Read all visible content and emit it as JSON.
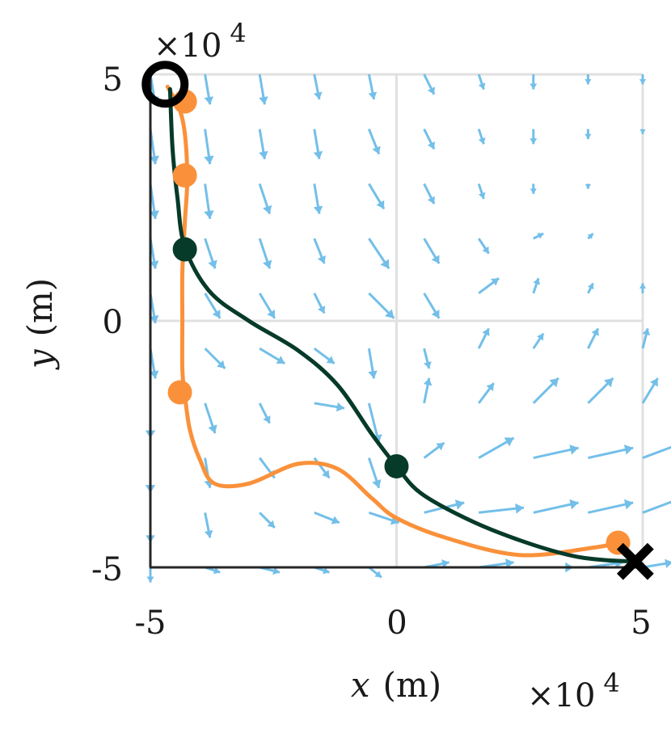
{
  "chart_data": {
    "type": "line",
    "title": "",
    "xlabel": "x (m)",
    "ylabel": "y (m)",
    "xlabel_var": "x",
    "xlabel_unit": "(m)",
    "ylabel_var": "y",
    "ylabel_unit": "(m)",
    "x_multiplier": "×10",
    "x_multiplier_exp": "4",
    "y_multiplier": "×10",
    "y_multiplier_exp": "4",
    "xlim": [
      -5,
      5
    ],
    "ylim": [
      -5,
      5
    ],
    "xticks": [
      "-5",
      "0",
      "5"
    ],
    "yticks": [
      "5",
      "0",
      "-5"
    ],
    "grid": true,
    "legend": "none",
    "series": [
      {
        "color": "#fa913a",
        "x": [
          -4.65,
          -4.35,
          -4.25,
          -4.3,
          -4.35,
          -4.35,
          -4.35,
          -4.3,
          -4.2,
          -4.0,
          -3.7,
          -3.0,
          -2.0,
          -1.2,
          -0.5,
          0.0,
          1.0,
          2.5,
          4.0,
          4.5
        ],
        "y": [
          4.75,
          4.1,
          3.0,
          2.0,
          1.0,
          0.0,
          -1.0,
          -1.5,
          -2.2,
          -2.8,
          -3.3,
          -3.3,
          -2.9,
          -3.0,
          -3.6,
          -4.0,
          -4.4,
          -4.75,
          -4.6,
          -4.5
        ],
        "markers_x": [
          -4.3,
          -4.3,
          -4.4,
          4.5
        ],
        "markers_y": [
          4.45,
          2.95,
          -1.45,
          -4.5
        ]
      },
      {
        "color": "#063a29",
        "x": [
          -4.6,
          -4.55,
          -4.45,
          -4.3,
          -3.8,
          -3.0,
          -2.0,
          -1.2,
          -0.5,
          0.0,
          0.5,
          1.5,
          2.5,
          3.5,
          4.2,
          4.85
        ],
        "y": [
          4.7,
          3.5,
          2.5,
          1.5,
          0.6,
          0.0,
          -0.6,
          -1.3,
          -2.3,
          -2.95,
          -3.5,
          -4.05,
          -4.45,
          -4.75,
          -4.85,
          -4.88
        ],
        "markers_x": [
          -4.3,
          0.0
        ],
        "markers_y": [
          1.45,
          -2.95
        ]
      }
    ],
    "start_point": [
      -4.7,
      4.8
    ],
    "end_point": [
      4.85,
      -4.88
    ],
    "vector_field": {
      "color": "#73bfe9",
      "grid_x": [
        -5.0,
        -3.89,
        -2.78,
        -1.67,
        -0.56,
        0.56,
        1.67,
        2.78,
        3.89,
        5.0
      ],
      "grid_y": [
        -5.0,
        -3.89,
        -2.78,
        -1.67,
        -0.56,
        0.56,
        1.67,
        2.78,
        3.89,
        5.0
      ],
      "u": [
        [
          0.0,
          0.3,
          0.4,
          0.3,
          0.25,
          0.5,
          0.7,
          0.8,
          0.7,
          0.6
        ],
        [
          0.0,
          0.1,
          0.3,
          0.5,
          0.6,
          0.8,
          0.9,
          0.9,
          0.9,
          0.8
        ],
        [
          0.0,
          0.1,
          0.3,
          0.3,
          0.2,
          0.4,
          0.7,
          0.9,
          0.9,
          0.8
        ],
        [
          0.0,
          0.2,
          0.2,
          0.6,
          0.2,
          0.1,
          0.3,
          0.5,
          0.5,
          0.3
        ],
        [
          0.1,
          0.4,
          0.5,
          0.4,
          0.1,
          0.1,
          0.2,
          0.2,
          0.2,
          0.1
        ],
        [
          0.1,
          0.3,
          0.3,
          0.2,
          0.5,
          0.3,
          0.4,
          0.1,
          0.1,
          0.0
        ],
        [
          0.1,
          0.2,
          0.2,
          0.2,
          0.4,
          0.3,
          0.2,
          0.2,
          0.1,
          0.0
        ],
        [
          0.1,
          0.1,
          0.2,
          0.1,
          0.3,
          0.2,
          0.1,
          0.0,
          0.0,
          0.0
        ],
        [
          0.1,
          0.1,
          0.1,
          0.1,
          0.2,
          0.2,
          0.1,
          0.0,
          0.0,
          0.0
        ],
        [
          0.1,
          0.1,
          0.1,
          0.1,
          0.1,
          0.2,
          0.1,
          0.0,
          0.0,
          0.0
        ]
      ],
      "v": [
        [
          -0.3,
          -0.1,
          -0.1,
          -0.1,
          -0.2,
          0.1,
          0.1,
          0.0,
          0.1,
          0.1
        ],
        [
          -0.6,
          -0.5,
          -0.3,
          -0.2,
          -0.2,
          0.2,
          0.1,
          0.2,
          0.2,
          0.3
        ],
        [
          -0.7,
          -0.6,
          -0.4,
          -0.4,
          -0.6,
          0.3,
          0.4,
          0.2,
          0.2,
          0.3
        ],
        [
          -0.7,
          -0.6,
          -0.4,
          -0.1,
          -0.8,
          0.5,
          0.4,
          0.5,
          0.5,
          0.5
        ],
        [
          -0.6,
          -0.4,
          -0.3,
          -0.3,
          -0.6,
          -0.4,
          0.4,
          0.3,
          0.4,
          0.4
        ],
        [
          -0.6,
          -0.5,
          -0.5,
          -0.4,
          -0.5,
          -0.5,
          0.3,
          0.3,
          0.2,
          0.2
        ],
        [
          -0.6,
          -0.6,
          -0.6,
          -0.5,
          -0.6,
          -0.5,
          -0.3,
          0.1,
          0.1,
          0.0
        ],
        [
          -0.7,
          -0.7,
          -0.6,
          -0.6,
          -0.5,
          -0.4,
          -0.3,
          -0.2,
          -0.1,
          0.0
        ],
        [
          -0.7,
          -0.7,
          -0.6,
          -0.6,
          -0.5,
          -0.4,
          -0.3,
          -0.3,
          -0.2,
          -0.1
        ],
        [
          -0.6,
          -0.6,
          -0.6,
          -0.5,
          -0.5,
          -0.4,
          -0.3,
          -0.3,
          -0.2,
          -0.2
        ]
      ]
    }
  }
}
